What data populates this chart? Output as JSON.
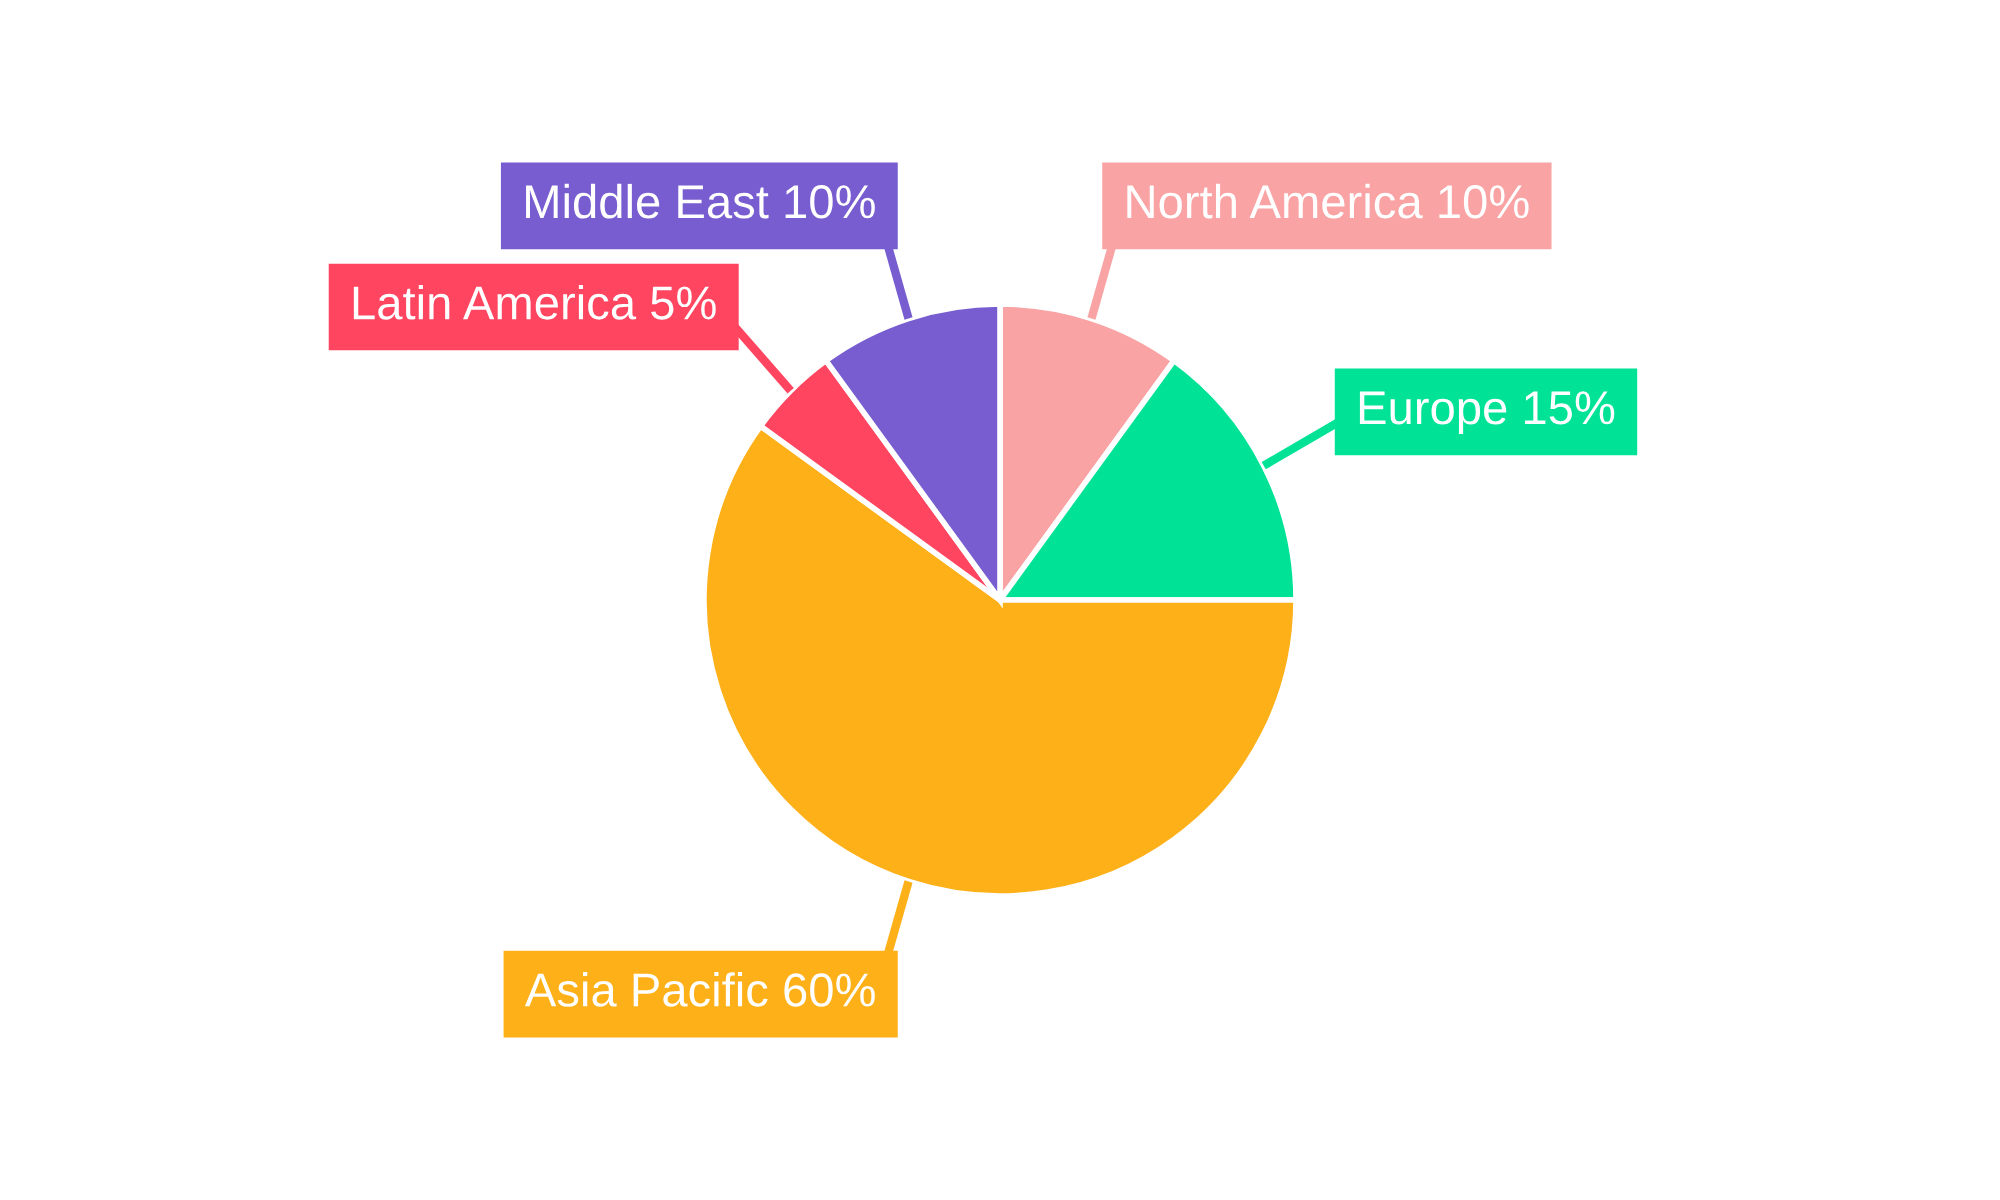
{
  "chart_data": {
    "type": "pie",
    "categories": [
      "North America",
      "Europe",
      "Asia Pacific",
      "Latin America",
      "Middle East"
    ],
    "values": [
      10,
      15,
      60,
      5,
      10
    ],
    "value_labels": [
      "10%",
      "15%",
      "60%",
      "5%",
      "10%"
    ],
    "colors": [
      "#f9a3a4",
      "#00e396",
      "#feb019",
      "#ff4560",
      "#775dd0"
    ],
    "legend": false
  }
}
